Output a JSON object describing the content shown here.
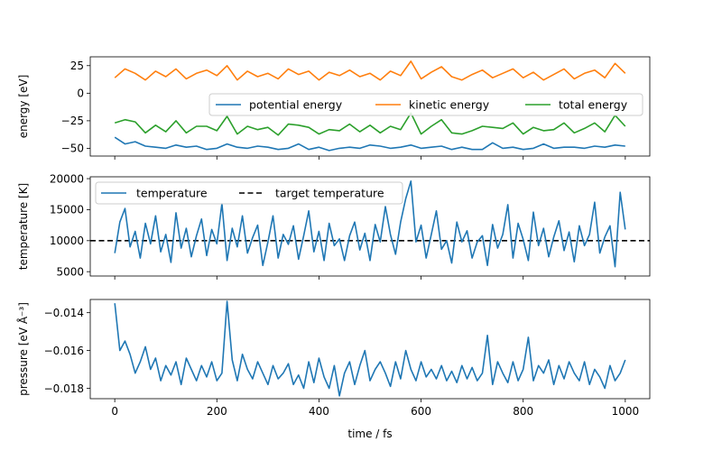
{
  "chart_data": [
    {
      "type": "line",
      "ylabel": "energy [eV]",
      "xlim": [
        -48,
        1048
      ],
      "ylim": [
        -57,
        33
      ],
      "x_ticks": [
        0,
        200,
        400,
        600,
        800,
        1000
      ],
      "y_ticks": [
        25,
        0,
        -25,
        -50
      ],
      "legend": "center-right",
      "legend_ncol": 3,
      "series": [
        {
          "name": "potential energy",
          "color": "#1f77b4",
          "x": [
            0,
            20,
            40,
            60,
            80,
            100,
            120,
            140,
            160,
            180,
            200,
            220,
            240,
            260,
            280,
            300,
            320,
            340,
            360,
            380,
            400,
            420,
            440,
            460,
            480,
            500,
            520,
            540,
            560,
            580,
            600,
            620,
            640,
            660,
            680,
            700,
            720,
            740,
            760,
            780,
            800,
            820,
            840,
            860,
            880,
            900,
            920,
            940,
            960,
            980,
            1000
          ],
          "y": [
            -40,
            -46,
            -44,
            -48,
            -49,
            -50,
            -47,
            -49,
            -48,
            -51,
            -50,
            -46,
            -49,
            -50,
            -48,
            -49,
            -51,
            -50,
            -46,
            -51,
            -49,
            -52,
            -50,
            -49,
            -50,
            -47,
            -48,
            -50,
            -49,
            -47,
            -50,
            -49,
            -48,
            -51,
            -49,
            -51,
            -51,
            -45,
            -50,
            -49,
            -51,
            -50,
            -46,
            -50,
            -49,
            -49,
            -50,
            -48,
            -49,
            -47,
            -48
          ]
        },
        {
          "name": "kinetic energy",
          "color": "#ff7f0e",
          "x": [
            0,
            20,
            40,
            60,
            80,
            100,
            120,
            140,
            160,
            180,
            200,
            220,
            240,
            260,
            280,
            300,
            320,
            340,
            360,
            380,
            400,
            420,
            440,
            460,
            480,
            500,
            520,
            540,
            560,
            580,
            600,
            620,
            640,
            660,
            680,
            700,
            720,
            740,
            760,
            780,
            800,
            820,
            840,
            860,
            880,
            900,
            920,
            940,
            960,
            980,
            1000
          ],
          "y": [
            14,
            22,
            18,
            12,
            20,
            15,
            22,
            13,
            18,
            21,
            16,
            25,
            12,
            20,
            15,
            18,
            13,
            22,
            17,
            20,
            12,
            19,
            16,
            21,
            15,
            18,
            12,
            20,
            16,
            29,
            13,
            19,
            24,
            15,
            12,
            17,
            21,
            14,
            18,
            22,
            14,
            19,
            12,
            17,
            22,
            13,
            18,
            21,
            14,
            27,
            18
          ]
        },
        {
          "name": "total energy",
          "color": "#2ca02c",
          "x": [
            0,
            20,
            40,
            60,
            80,
            100,
            120,
            140,
            160,
            180,
            200,
            220,
            240,
            260,
            280,
            300,
            320,
            340,
            360,
            380,
            400,
            420,
            440,
            460,
            480,
            500,
            520,
            540,
            560,
            580,
            600,
            620,
            640,
            660,
            680,
            700,
            720,
            740,
            760,
            780,
            800,
            820,
            840,
            860,
            880,
            900,
            920,
            940,
            960,
            980,
            1000
          ],
          "y": [
            -27,
            -24,
            -26,
            -36,
            -29,
            -35,
            -25,
            -36,
            -30,
            -30,
            -34,
            -21,
            -37,
            -30,
            -33,
            -31,
            -38,
            -28,
            -29,
            -31,
            -37,
            -33,
            -34,
            -28,
            -35,
            -29,
            -36,
            -30,
            -33,
            -18,
            -37,
            -30,
            -24,
            -36,
            -37,
            -34,
            -30,
            -31,
            -32,
            -27,
            -37,
            -31,
            -34,
            -33,
            -27,
            -36,
            -32,
            -27,
            -35,
            -20,
            -30
          ]
        }
      ]
    },
    {
      "type": "line",
      "ylabel": "temperature [K]",
      "xlim": [
        -48,
        1048
      ],
      "ylim": [
        4300,
        20300
      ],
      "x_ticks": [
        0,
        200,
        400,
        600,
        800,
        1000
      ],
      "y_ticks": [
        20000,
        15000,
        10000,
        5000
      ],
      "legend": "top-left",
      "legend_ncol": 2,
      "reference_line": {
        "name": "target temperature",
        "value": 10000,
        "color": "#000000"
      },
      "series": [
        {
          "name": "temperature",
          "color": "#1f77b4",
          "x": [
            0,
            10,
            20,
            30,
            40,
            50,
            60,
            70,
            80,
            90,
            100,
            110,
            120,
            130,
            140,
            150,
            160,
            170,
            180,
            190,
            200,
            210,
            220,
            230,
            240,
            250,
            260,
            270,
            280,
            290,
            300,
            310,
            320,
            330,
            340,
            350,
            360,
            370,
            380,
            390,
            400,
            410,
            420,
            430,
            440,
            450,
            460,
            470,
            480,
            490,
            500,
            510,
            520,
            530,
            540,
            550,
            560,
            570,
            580,
            590,
            600,
            610,
            620,
            630,
            640,
            650,
            660,
            670,
            680,
            690,
            700,
            710,
            720,
            730,
            740,
            750,
            760,
            770,
            780,
            790,
            800,
            810,
            820,
            830,
            840,
            850,
            860,
            870,
            880,
            890,
            900,
            910,
            920,
            930,
            940,
            950,
            960,
            970,
            980,
            990,
            1000
          ],
          "y": [
            8000,
            13000,
            15200,
            9000,
            11500,
            7200,
            12800,
            9500,
            14000,
            8200,
            11000,
            6500,
            14500,
            8800,
            12000,
            7400,
            10800,
            13500,
            7600,
            11800,
            9500,
            16000,
            6800,
            12000,
            9000,
            14000,
            8000,
            10500,
            12500,
            6000,
            9800,
            14000,
            7200,
            11000,
            9400,
            12400,
            7000,
            10800,
            14800,
            8200,
            11500,
            6800,
            12800,
            9200,
            10300,
            6800,
            10800,
            13000,
            8500,
            11200,
            6800,
            12600,
            9800,
            15500,
            11000,
            7800,
            13000,
            16800,
            19600,
            9800,
            12500,
            7200,
            11000,
            14800,
            8600,
            10000,
            6400,
            13000,
            9800,
            11600,
            7200,
            9800,
            10800,
            6000,
            12600,
            8800,
            11000,
            15800,
            7200,
            12800,
            10200,
            6800,
            14600,
            9200,
            12000,
            7400,
            10600,
            13200,
            8400,
            11400,
            6600,
            12400,
            9200,
            11000,
            16200,
            8000,
            10600,
            12400,
            5800,
            17800,
            11800
          ]
        }
      ]
    },
    {
      "type": "line",
      "ylabel": "pressure [eV Å⁻³]",
      "xlabel": "time / fs",
      "xlim": [
        -48,
        1048
      ],
      "ylim": [
        -0.01855,
        -0.0133
      ],
      "x_ticks": [
        0,
        200,
        400,
        600,
        800,
        1000
      ],
      "y_ticks": [
        -0.014,
        -0.016,
        -0.018
      ],
      "series": [
        {
          "name": "pressure",
          "color": "#1f77b4",
          "x": [
            0,
            10,
            20,
            30,
            40,
            50,
            60,
            70,
            80,
            90,
            100,
            110,
            120,
            130,
            140,
            150,
            160,
            170,
            180,
            190,
            200,
            210,
            220,
            230,
            240,
            250,
            260,
            270,
            280,
            290,
            300,
            310,
            320,
            330,
            340,
            350,
            360,
            370,
            380,
            390,
            400,
            410,
            420,
            430,
            440,
            450,
            460,
            470,
            480,
            490,
            500,
            510,
            520,
            530,
            540,
            550,
            560,
            570,
            580,
            590,
            600,
            610,
            620,
            630,
            640,
            650,
            660,
            670,
            680,
            690,
            700,
            710,
            720,
            730,
            740,
            750,
            760,
            770,
            780,
            790,
            800,
            810,
            820,
            830,
            840,
            850,
            860,
            870,
            880,
            890,
            900,
            910,
            920,
            930,
            940,
            950,
            960,
            970,
            980,
            990,
            1000
          ],
          "y": [
            -0.0135,
            -0.016,
            -0.0155,
            -0.0162,
            -0.0172,
            -0.0166,
            -0.0158,
            -0.017,
            -0.0164,
            -0.0176,
            -0.0168,
            -0.0173,
            -0.0166,
            -0.0178,
            -0.0164,
            -0.017,
            -0.0176,
            -0.0168,
            -0.0174,
            -0.0166,
            -0.0176,
            -0.0172,
            -0.0134,
            -0.0165,
            -0.0176,
            -0.0162,
            -0.017,
            -0.0175,
            -0.0166,
            -0.0172,
            -0.0178,
            -0.0168,
            -0.0175,
            -0.0172,
            -0.0167,
            -0.0178,
            -0.0173,
            -0.018,
            -0.0166,
            -0.0177,
            -0.0164,
            -0.0174,
            -0.018,
            -0.0168,
            -0.0184,
            -0.0172,
            -0.0166,
            -0.0178,
            -0.0168,
            -0.016,
            -0.0176,
            -0.017,
            -0.0166,
            -0.0172,
            -0.0179,
            -0.0166,
            -0.0175,
            -0.016,
            -0.017,
            -0.0176,
            -0.0166,
            -0.0174,
            -0.017,
            -0.0175,
            -0.0168,
            -0.0176,
            -0.0171,
            -0.0177,
            -0.0168,
            -0.0175,
            -0.0169,
            -0.0176,
            -0.0172,
            -0.0152,
            -0.0178,
            -0.0166,
            -0.0172,
            -0.0177,
            -0.0166,
            -0.0176,
            -0.017,
            -0.0153,
            -0.0176,
            -0.0168,
            -0.0172,
            -0.0165,
            -0.0178,
            -0.0168,
            -0.0175,
            -0.0166,
            -0.0172,
            -0.0176,
            -0.0166,
            -0.0178,
            -0.017,
            -0.0174,
            -0.018,
            -0.0168,
            -0.0176,
            -0.0172,
            -0.0165
          ]
        }
      ]
    }
  ]
}
